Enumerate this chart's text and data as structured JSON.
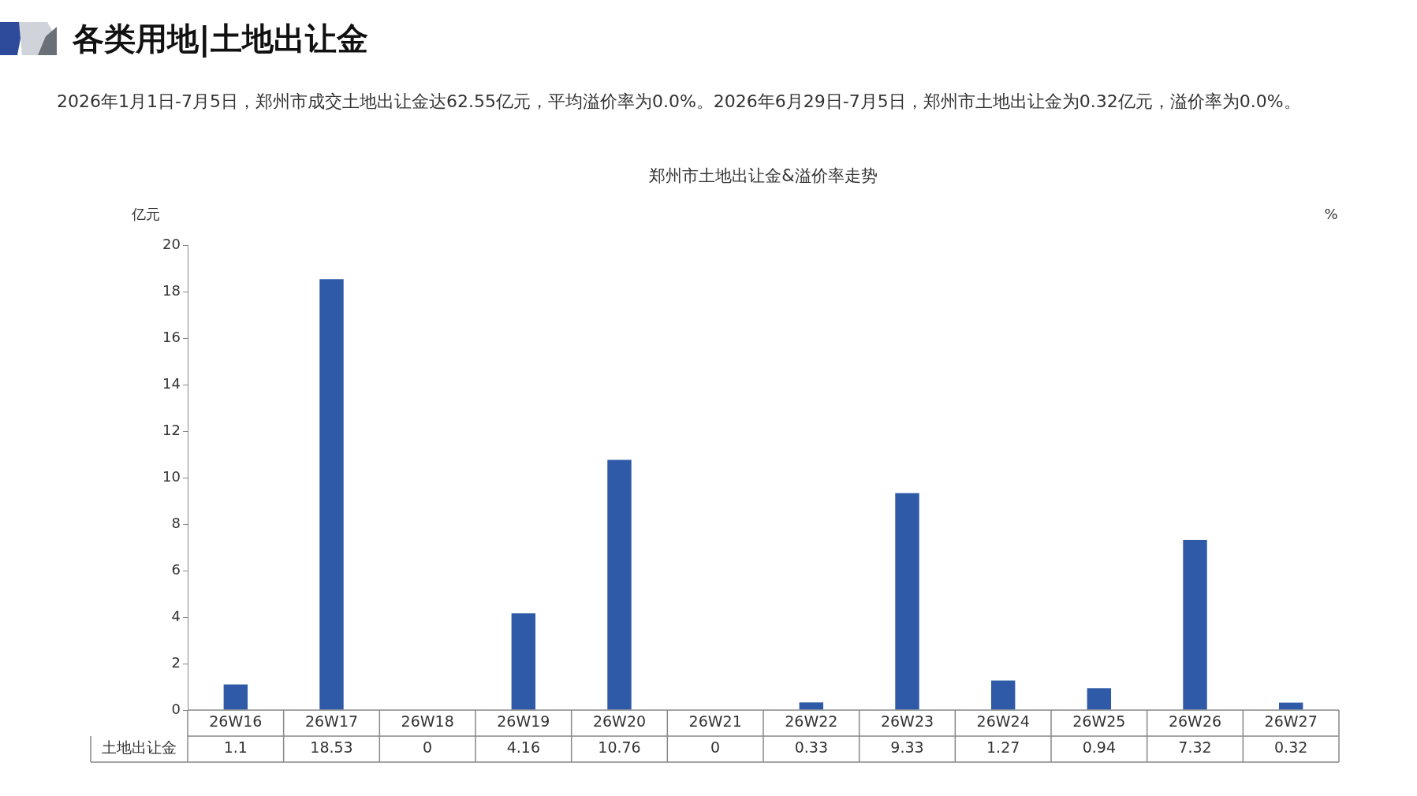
{
  "chart_data": {
    "type": "bar",
    "title": "各类用地|土地出让金",
    "subtitle": "郑州市土地出让金&溢价率走势",
    "ylabel": "亿元",
    "y2label": "%",
    "annotations": [
      "2026年1月1日-7月5日，郑州市成交土地出让金达62.55亿元，平均溢价率为0.0%。2026年6月29日-7月5日，郑州市土地出让金为0.32亿元，溢价率为0.0%。"
    ],
    "categories": [
      "26W16",
      "26W17",
      "26W18",
      "26W19",
      "26W20",
      "26W21",
      "26W22",
      "26W23",
      "26W24",
      "26W25",
      "26W26",
      "26W27"
    ],
    "series": [
      {
        "name": "土地出让金",
        "color": "#2e5aa8",
        "values": [
          1.1,
          18.53,
          0,
          4.16,
          10.76,
          0,
          0.33,
          9.33,
          1.27,
          0.94,
          7.32,
          0.32
        ]
      }
    ],
    "ylim": [
      0,
      20
    ],
    "yticks": [
      0,
      2,
      4,
      6,
      8,
      10,
      12,
      14,
      16,
      18,
      20
    ],
    "grid": false,
    "legend": false,
    "data_labels": true
  }
}
